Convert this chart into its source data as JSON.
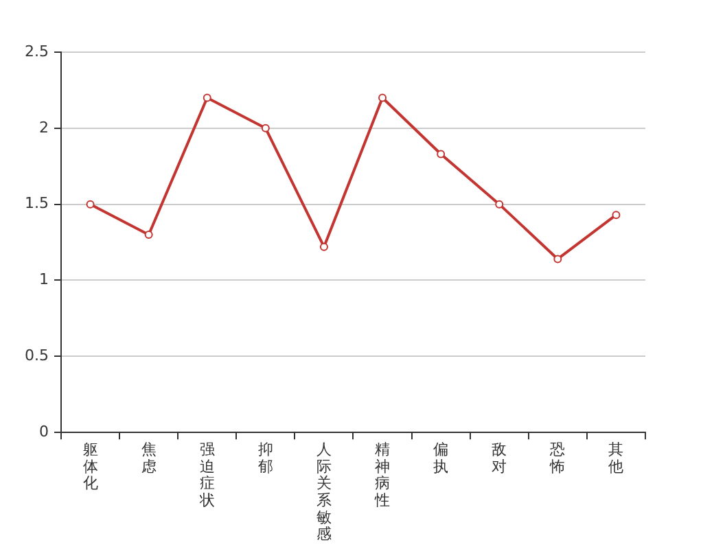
{
  "chart_data": {
    "type": "line",
    "categories": [
      "躯体化",
      "焦虑",
      "强迫症状",
      "抑郁",
      "人际关系敏感",
      "精神病性",
      "偏执",
      "敌对",
      "恐怖",
      "其他"
    ],
    "values": [
      1.5,
      1.3,
      2.2,
      2.0,
      1.22,
      2.2,
      1.83,
      1.5,
      1.14,
      1.43
    ],
    "color": "#c23531",
    "ylim": [
      0,
      2.5
    ],
    "yticks": [
      0,
      0.5,
      1,
      1.5,
      2,
      2.5
    ],
    "grid": "y",
    "marker": "circle"
  }
}
